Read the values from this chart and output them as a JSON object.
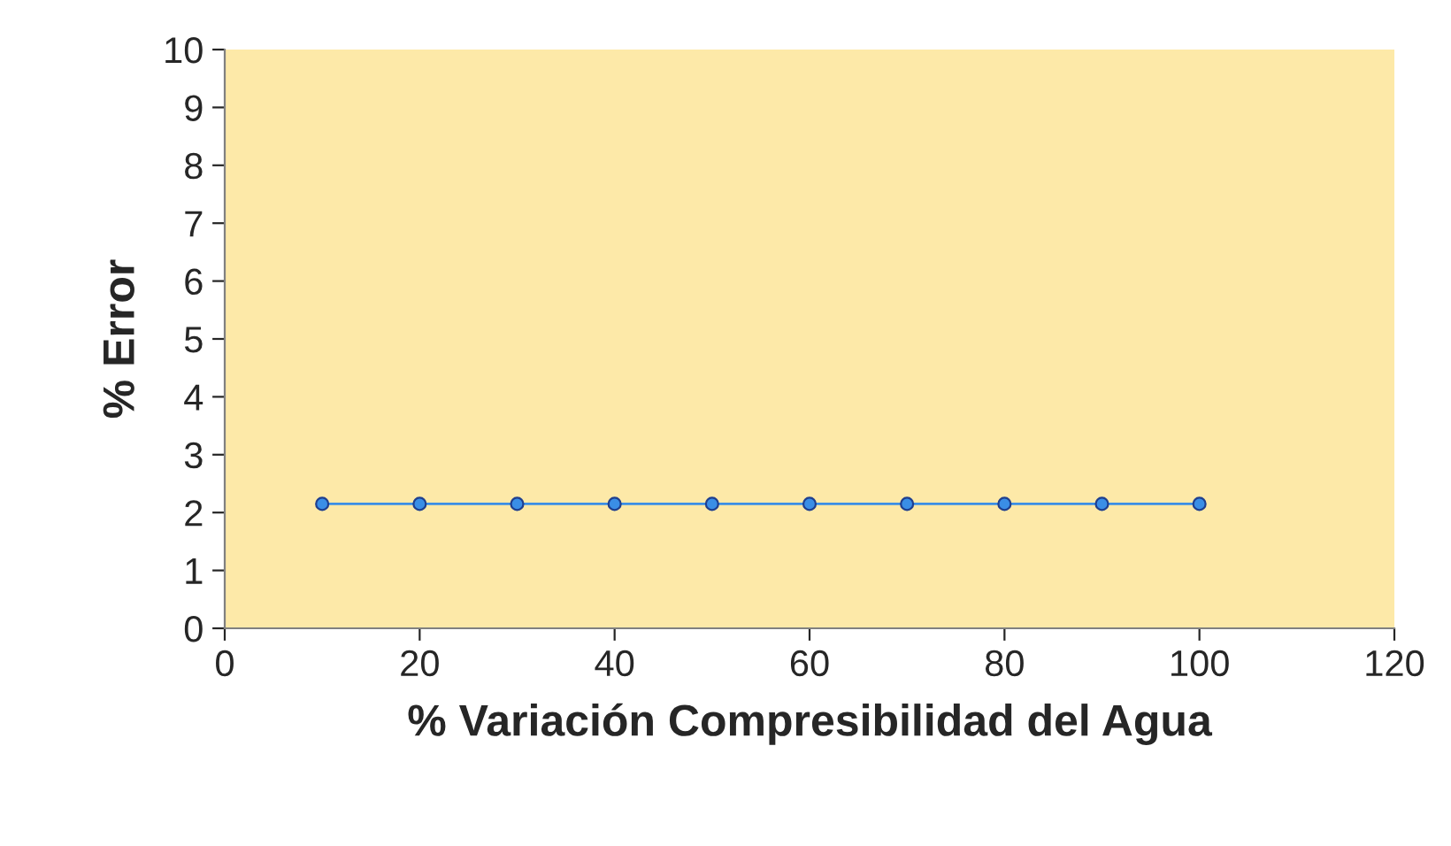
{
  "chart_data": {
    "type": "line",
    "xlabel": "% Variación Compresibilidad del Agua",
    "ylabel": "% Error",
    "x": [
      10,
      20,
      30,
      40,
      50,
      60,
      70,
      80,
      90,
      100
    ],
    "series": [
      {
        "color": "#3a8ee6",
        "values": [
          2.15,
          2.15,
          2.15,
          2.15,
          2.15,
          2.15,
          2.15,
          2.15,
          2.15,
          2.15
        ]
      }
    ],
    "xlim": [
      0,
      120
    ],
    "xticks": [
      0,
      20,
      40,
      60,
      80,
      100,
      120
    ],
    "ylim": [
      0,
      10
    ],
    "yticks": [
      0,
      1,
      2,
      3,
      4,
      5,
      6,
      7,
      8,
      9,
      10
    ],
    "marker": "circle",
    "grid": false
  }
}
